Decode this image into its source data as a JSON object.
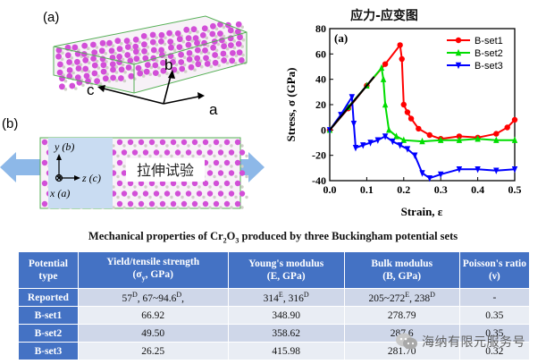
{
  "figure": {
    "panel_a_label": "(a)",
    "panel_b_label": "(b)",
    "axis_letters": {
      "a": "a",
      "b": "b",
      "c": "c"
    },
    "coord_labels": {
      "y": "y (b)",
      "z": "z (c)",
      "x": "x (a)"
    },
    "tension_label": "拉伸试验",
    "colors": {
      "atom_large": "#d24fd8",
      "atom_small": "#d0d0c8",
      "cell_edge": "#56b056",
      "arrow": "#8db8e8",
      "coord_box": "#c9dcf2"
    }
  },
  "chart_data": {
    "type": "line",
    "title": "应力-应变图",
    "panel_label": "(a)",
    "xlabel": "Strain, ε",
    "ylabel": "Stress, σ (GPa)",
    "xlim": [
      0,
      0.5
    ],
    "ylim": [
      -40,
      80
    ],
    "xticks": [
      "0.0",
      "0.1",
      "0.2",
      "0.3",
      "0.4",
      "0.5"
    ],
    "yticks": [
      "-40",
      "-20",
      "0",
      "20",
      "40",
      "60",
      "80"
    ],
    "grid": false,
    "legend_position": "top-right",
    "series": [
      {
        "name": "B-set1",
        "color": "#ff0000",
        "marker": "circle",
        "x": [
          0,
          0.05,
          0.1,
          0.15,
          0.19,
          0.195,
          0.2,
          0.21,
          0.22,
          0.24,
          0.27,
          0.3,
          0.35,
          0.4,
          0.45,
          0.48,
          0.5
        ],
        "y": [
          0,
          17,
          35,
          52,
          67,
          56,
          20,
          14,
          9,
          1,
          -4,
          -7,
          -5,
          -6,
          -3,
          2,
          8
        ]
      },
      {
        "name": "B-set2",
        "color": "#00dd00",
        "marker": "triangle-up",
        "x": [
          0,
          0.05,
          0.1,
          0.14,
          0.145,
          0.15,
          0.16,
          0.18,
          0.2,
          0.25,
          0.3,
          0.35,
          0.4,
          0.45,
          0.5
        ],
        "y": [
          0,
          18,
          35,
          49,
          40,
          20,
          0,
          -5,
          -8,
          -9,
          -8,
          -8,
          -7,
          -8,
          -8
        ]
      },
      {
        "name": "B-set3",
        "color": "#0000ff",
        "marker": "triangle-down",
        "x": [
          0,
          0.03,
          0.06,
          0.065,
          0.07,
          0.09,
          0.11,
          0.13,
          0.15,
          0.17,
          0.19,
          0.21,
          0.23,
          0.25,
          0.27,
          0.3,
          0.35,
          0.4,
          0.45,
          0.5
        ],
        "y": [
          0,
          12,
          26,
          5,
          -14,
          -12,
          -10,
          -8,
          -5,
          -9,
          -12,
          -15,
          -20,
          -34,
          -38,
          -35,
          -31,
          -31,
          -32,
          -31
        ]
      }
    ]
  },
  "table": {
    "caption_main": "Mechanical properties of Cr",
    "caption_sub1": "2",
    "caption_mid": "O",
    "caption_sub2": "3",
    "caption_end": " produced by three Buckingham potential sets",
    "headers": [
      {
        "l1": "Potential",
        "l2": "type"
      },
      {
        "l1": "Yield/tensile strength",
        "l2": "(σ",
        "l2_sub": "y",
        "l2_end": ", GPa)"
      },
      {
        "l1": "Young's modulus",
        "l2": "(E, GPa)"
      },
      {
        "l1": "Bulk modulus",
        "l2": "(B, GPa)"
      },
      {
        "l1": "Poisson's ratio",
        "l2": "(ν)"
      }
    ],
    "reported": {
      "label": "Reported",
      "yield_a": "57",
      "yield_a_sup": "D",
      "yield_b": ", 67~94.6",
      "yield_b_sup": "D",
      "yield_c": ",",
      "young_a": "314",
      "young_a_sup": "E",
      "young_b": ", 316",
      "young_b_sup": "D",
      "bulk_a": "205~272",
      "bulk_a_sup": "E",
      "bulk_b": ", 238",
      "bulk_b_sup": "D",
      "poisson": "-"
    },
    "rows": [
      {
        "label": "B-set1",
        "yield": "66.92",
        "young": "348.90",
        "bulk": "278.79",
        "poisson": "0.35"
      },
      {
        "label": "B-set2",
        "yield": "49.50",
        "young": "358.62",
        "bulk": "287.6",
        "poisson": "0.35"
      },
      {
        "label": "B-set3",
        "yield": "26.25",
        "young": "415.98",
        "bulk": "281.70",
        "poisson": "0.32"
      }
    ]
  },
  "watermark": {
    "text": "海纳有限元服务号"
  }
}
